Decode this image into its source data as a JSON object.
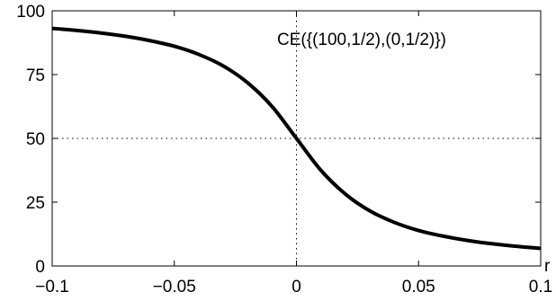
{
  "chart_data": {
    "type": "line",
    "title": "",
    "xlabel": "r",
    "ylabel": "",
    "xlim": [
      -0.1,
      0.1
    ],
    "ylim": [
      0,
      100
    ],
    "x_ticks": [
      -0.1,
      -0.05,
      0,
      0.05,
      0.1
    ],
    "x_tick_labels": [
      "−0.1",
      "−0.05",
      "0",
      "0.05",
      "0.1"
    ],
    "y_ticks": [
      0,
      25,
      50,
      75,
      100
    ],
    "y_tick_labels": [
      "0",
      "25",
      "50",
      "75",
      "100"
    ],
    "grid": false,
    "reference_lines": [
      {
        "orientation": "vertical",
        "value": 0,
        "style": "dotted"
      },
      {
        "orientation": "horizontal",
        "value": 50,
        "style": "dotted"
      }
    ],
    "annotation": "CE({(100,1/2),(0,1/2)})",
    "series": [
      {
        "color": "#000000",
        "x": [
          -0.1,
          -0.09,
          -0.08,
          -0.07,
          -0.06,
          -0.05,
          -0.04,
          -0.03,
          -0.02,
          -0.01,
          0,
          0.01,
          0.02,
          0.03,
          0.04,
          0.05,
          0.06,
          0.07,
          0.08,
          0.09,
          0.1
        ],
        "y": [
          93.1,
          92.3,
          91.3,
          90.0,
          88.3,
          86.1,
          82.9,
          78.4,
          71.8,
          62.5,
          50.0,
          37.5,
          28.2,
          21.6,
          17.1,
          13.9,
          11.7,
          10.0,
          8.7,
          7.7,
          6.9
        ]
      }
    ]
  }
}
